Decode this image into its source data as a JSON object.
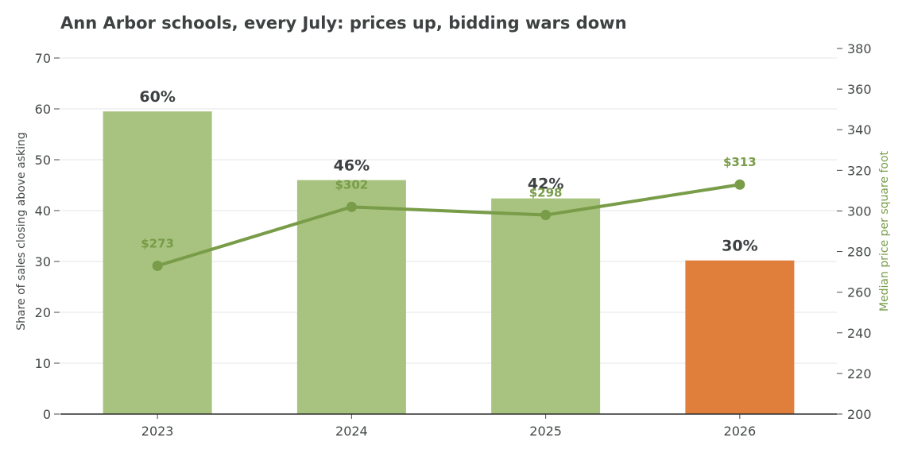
{
  "chart_data": {
    "type": "bar",
    "title": "Ann Arbor schools, every July: prices up, bidding wars down",
    "categories": [
      "2023",
      "2024",
      "2025",
      "2026"
    ],
    "series": [
      {
        "axis": "left",
        "type": "bar",
        "values": [
          59.5,
          46,
          42.4,
          30.2
        ],
        "labels": [
          "60%",
          "46%",
          "42%",
          "30%"
        ],
        "colors": [
          "#a8c37f",
          "#a8c37f",
          "#a8c37f",
          "#e07e3c"
        ]
      },
      {
        "axis": "right",
        "type": "line",
        "values": [
          273,
          302,
          298,
          313
        ],
        "labels": [
          "$273",
          "$302",
          "$298",
          "$313"
        ],
        "color": "#789c48"
      }
    ],
    "ylabel": "Share of sales closing above asking",
    "ylim": [
      0,
      70
    ],
    "yticks": [
      "0",
      "10",
      "20",
      "30",
      "40",
      "50",
      "60",
      "70"
    ],
    "y2label": "Median price per square foot",
    "y2lim": [
      200,
      380
    ],
    "y2ticks": [
      "200",
      "220",
      "240",
      "260",
      "280",
      "300",
      "320",
      "340",
      "360",
      "380"
    ],
    "grid": true,
    "colors": {
      "bar": "#a8c37f",
      "highlight": "#e07e3c",
      "line": "#789c48",
      "text": "#3d4142"
    }
  }
}
